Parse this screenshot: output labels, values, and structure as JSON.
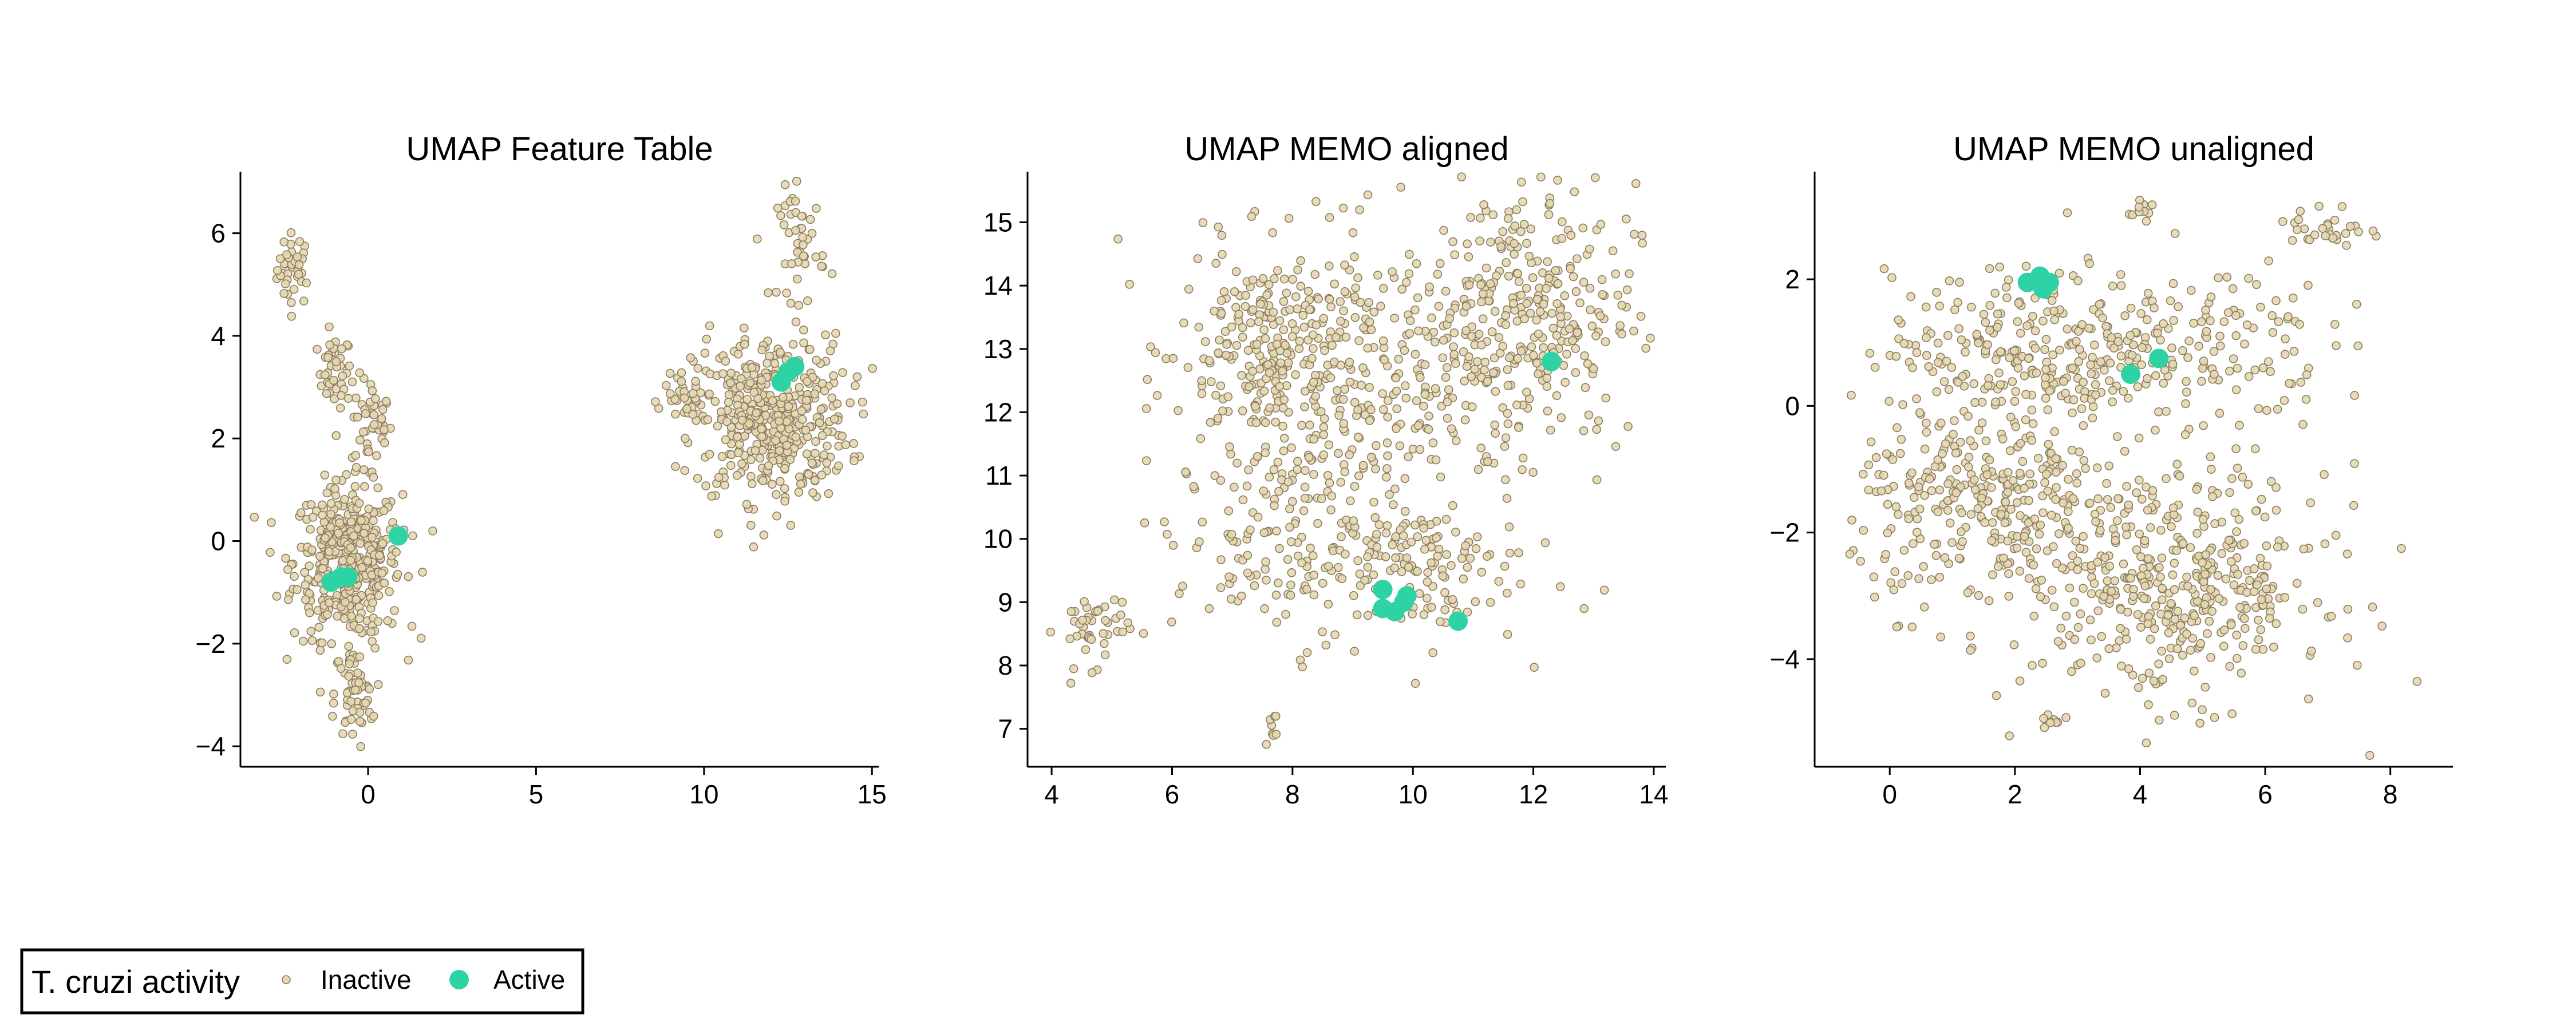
{
  "chart_data": [
    {
      "type": "scatter",
      "title": "UMAP Feature Table",
      "xlim": [
        -3.8,
        15.2
      ],
      "ylim": [
        -4.4,
        7.2
      ],
      "xticks": [
        0,
        5,
        10,
        15
      ],
      "xtick_labels": [
        "0",
        "5",
        "10",
        "15"
      ],
      "yticks": [
        -4,
        -2,
        0,
        2,
        4,
        6
      ],
      "ytick_labels": [
        "−4",
        "−2",
        "0",
        "2",
        "4",
        "6"
      ],
      "clusters": [
        {
          "cx": -2.2,
          "cy": 5.3,
          "sx": 0.25,
          "sy": 0.35,
          "n": 40
        },
        {
          "cx": -1.0,
          "cy": 3.3,
          "sx": 0.25,
          "sy": 0.35,
          "n": 40
        },
        {
          "cx": 0.1,
          "cy": 2.3,
          "sx": 0.3,
          "sy": 0.45,
          "n": 45
        },
        {
          "cx": -0.6,
          "cy": -0.4,
          "sx": 0.8,
          "sy": 0.75,
          "n": 420
        },
        {
          "cx": -0.4,
          "cy": -3.0,
          "sx": 0.3,
          "sy": 0.45,
          "n": 55
        },
        {
          "cx": 12.0,
          "cy": 2.4,
          "sx": 1.15,
          "sy": 0.8,
          "n": 460
        },
        {
          "cx": 12.9,
          "cy": 5.8,
          "sx": 0.35,
          "sy": 0.55,
          "n": 45
        },
        {
          "cx": 9.4,
          "cy": 2.8,
          "sx": 0.3,
          "sy": 0.2,
          "n": 25
        }
      ],
      "active": [
        [
          -1.1,
          -0.8
        ],
        [
          -0.8,
          -0.7
        ],
        [
          -0.6,
          -0.7
        ],
        [
          0.9,
          0.1
        ],
        [
          12.3,
          3.1
        ],
        [
          12.5,
          3.3
        ],
        [
          12.7,
          3.4
        ]
      ]
    },
    {
      "type": "scatter",
      "title": "UMAP MEMO aligned",
      "xlim": [
        3.6,
        14.2
      ],
      "ylim": [
        6.4,
        15.8
      ],
      "xticks": [
        4,
        6,
        8,
        10,
        12,
        14
      ],
      "xtick_labels": [
        "4",
        "6",
        "8",
        "10",
        "12",
        "14"
      ],
      "yticks": [
        7,
        8,
        9,
        10,
        11,
        12,
        13,
        14,
        15
      ],
      "ytick_labels": [
        "7",
        "8",
        "9",
        "10",
        "11",
        "12",
        "13",
        "14",
        "15"
      ],
      "clusters": [
        {
          "cx": 4.7,
          "cy": 8.6,
          "sx": 0.3,
          "sy": 0.3,
          "n": 45
        },
        {
          "cx": 7.7,
          "cy": 13.0,
          "sx": 0.8,
          "sy": 0.8,
          "n": 260
        },
        {
          "cx": 11.7,
          "cy": 13.6,
          "sx": 1.0,
          "sy": 1.0,
          "n": 330
        },
        {
          "cx": 9.5,
          "cy": 12.0,
          "sx": 1.3,
          "sy": 1.3,
          "n": 220
        },
        {
          "cx": 8.0,
          "cy": 10.0,
          "sx": 1.0,
          "sy": 0.8,
          "n": 160
        },
        {
          "cx": 10.2,
          "cy": 9.5,
          "sx": 0.8,
          "sy": 0.6,
          "n": 90
        },
        {
          "cx": 7.6,
          "cy": 7.1,
          "sx": 0.1,
          "sy": 0.15,
          "n": 8
        }
      ],
      "active": [
        [
          9.5,
          9.2
        ],
        [
          9.5,
          8.9
        ],
        [
          9.7,
          8.85
        ],
        [
          9.85,
          9.0
        ],
        [
          9.9,
          9.1
        ],
        [
          10.75,
          8.7
        ],
        [
          12.3,
          12.8
        ]
      ]
    },
    {
      "type": "scatter",
      "title": "UMAP MEMO unaligned",
      "xlim": [
        -1.2,
        9.0
      ],
      "ylim": [
        -5.7,
        3.7
      ],
      "xticks": [
        0,
        2,
        4,
        6,
        8
      ],
      "xtick_labels": [
        "0",
        "2",
        "4",
        "6",
        "8"
      ],
      "yticks": [
        -4,
        -2,
        0,
        2
      ],
      "ytick_labels": [
        "−4",
        "−2",
        "0",
        "2"
      ],
      "clusters": [
        {
          "cx": 2.4,
          "cy": 0.9,
          "sx": 1.2,
          "sy": 0.6,
          "n": 260
        },
        {
          "cx": 5.0,
          "cy": 1.0,
          "sx": 1.0,
          "sy": 0.7,
          "n": 120
        },
        {
          "cx": 7.0,
          "cy": 2.8,
          "sx": 0.3,
          "sy": 0.2,
          "n": 30
        },
        {
          "cx": 1.6,
          "cy": -1.6,
          "sx": 1.1,
          "sy": 0.8,
          "n": 320
        },
        {
          "cx": 4.6,
          "cy": -2.8,
          "sx": 1.2,
          "sy": 0.9,
          "n": 420
        },
        {
          "cx": 4.0,
          "cy": 3.1,
          "sx": 0.1,
          "sy": 0.1,
          "n": 10
        },
        {
          "cx": 2.6,
          "cy": -5.0,
          "sx": 0.12,
          "sy": 0.12,
          "n": 8
        }
      ],
      "active": [
        [
          2.2,
          1.95
        ],
        [
          2.4,
          2.05
        ],
        [
          2.55,
          1.95
        ],
        [
          2.45,
          1.85
        ],
        [
          3.85,
          0.5
        ],
        [
          4.3,
          0.75
        ]
      ]
    }
  ],
  "legend": {
    "title": "T. cruzi activity",
    "placement": "bottom-left",
    "inactive_label": "Inactive",
    "active_label": "Active"
  },
  "colors": {
    "inactive_fill": "#e6d7b0",
    "inactive_edge": "#8a7d62",
    "active_fill": "#2ed3a5"
  }
}
